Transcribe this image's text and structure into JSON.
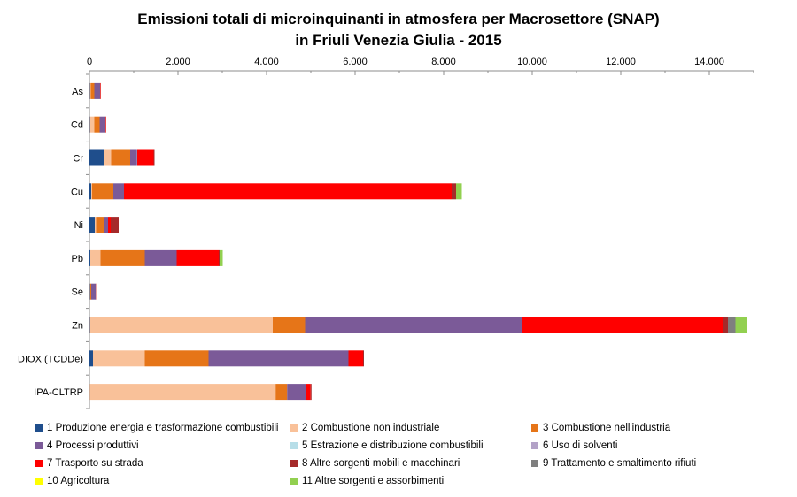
{
  "chart_data": {
    "type": "bar",
    "orientation": "horizontal",
    "stacked": true,
    "title_lines": [
      "Emissioni totali di microinquinanti  in  atmosfera per Macrosettore (SNAP)",
      "in Friuli Venezia Giulia - 2015"
    ],
    "xlim": [
      0,
      15000
    ],
    "xticks": [
      0,
      2000,
      4000,
      6000,
      8000,
      10000,
      12000,
      14000
    ],
    "xtick_labels": [
      "0",
      "2.000",
      "4.000",
      "6.000",
      "8.000",
      "10.000",
      "12.000",
      "14.000"
    ],
    "categories": [
      "As",
      "Cd",
      "Cr",
      "Cu",
      "Ni",
      "Pb",
      "Se",
      "Zn",
      "DIOX (TCDDe)",
      "IPA-CLTRP"
    ],
    "grid": false,
    "legend_position": "bottom",
    "series": [
      {
        "name": "1 Produzione energia e trasformazione combustibili",
        "color": "#1f4e8c",
        "values": [
          10,
          10,
          340,
          40,
          120,
          20,
          10,
          10,
          80,
          5
        ]
      },
      {
        "name": "2 Combustione non industriale",
        "color": "#f9c199",
        "values": [
          20,
          100,
          150,
          20,
          30,
          230,
          10,
          4130,
          1170,
          4200
        ]
      },
      {
        "name": "3 Combustione nell'industria",
        "color": "#e67518",
        "values": [
          80,
          120,
          430,
          480,
          180,
          1000,
          20,
          730,
          1440,
          260
        ]
      },
      {
        "name": "4 Processi produttivi",
        "color": "#7b5a98",
        "values": [
          130,
          130,
          150,
          240,
          90,
          720,
          100,
          4900,
          3160,
          430
        ]
      },
      {
        "name": "5 Estrazione e distribuzione combustibili",
        "color": "#b7dee8",
        "values": [
          0,
          0,
          0,
          0,
          0,
          0,
          0,
          0,
          0,
          0
        ]
      },
      {
        "name": "6 Uso di solventi",
        "color": "#b3a2c7",
        "values": [
          0,
          0,
          10,
          0,
          0,
          0,
          0,
          0,
          0,
          0
        ]
      },
      {
        "name": "7 Trasporto su strada",
        "color": "#ff0000",
        "values": [
          10,
          10,
          370,
          7400,
          60,
          950,
          5,
          4550,
          330,
          100
        ]
      },
      {
        "name": "8 Altre sorgenti mobili e macchinari",
        "color": "#a52a2a",
        "values": [
          5,
          5,
          20,
          100,
          180,
          20,
          5,
          100,
          20,
          20
        ]
      },
      {
        "name": "9 Trattamento e smaltimento rifiuti",
        "color": "#7f7f7f",
        "values": [
          0,
          0,
          0,
          0,
          0,
          0,
          0,
          170,
          0,
          0
        ]
      },
      {
        "name": "10 Agricoltura",
        "color": "#ffff00",
        "values": [
          0,
          0,
          0,
          0,
          0,
          0,
          0,
          0,
          0,
          0
        ]
      },
      {
        "name": "11 Altre sorgenti e assorbimenti",
        "color": "#92d050",
        "values": [
          0,
          0,
          0,
          130,
          0,
          70,
          0,
          270,
          0,
          0
        ]
      }
    ]
  }
}
